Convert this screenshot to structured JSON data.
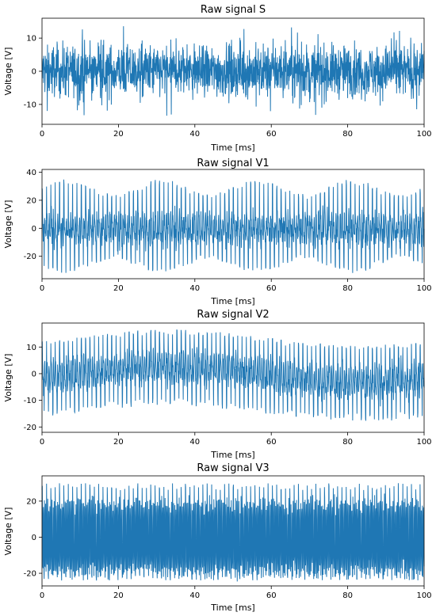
{
  "line_color": "#1f77b4",
  "chart_data": [
    {
      "type": "line",
      "title": "Raw signal S",
      "xlabel": "Time [ms]",
      "ylabel": "Voltage [V]",
      "xlim": [
        0,
        100
      ],
      "ylim": [
        -16,
        16
      ],
      "xticks": [
        0,
        20,
        40,
        60,
        80,
        100
      ],
      "yticks": [
        -10,
        0,
        10
      ],
      "grid": false,
      "signal": {
        "kind": "broadband_noise",
        "amplitude_typical": 7,
        "peak_max": 14,
        "peak_min": -14
      }
    },
    {
      "type": "line",
      "title": "Raw signal V1",
      "xlabel": "Time [ms]",
      "ylabel": "Voltage [V]",
      "xlim": [
        0,
        100
      ],
      "ylim": [
        -36,
        42
      ],
      "xticks": [
        0,
        20,
        40,
        60,
        80,
        100
      ],
      "yticks": [
        -20,
        0,
        20,
        40
      ],
      "grid": false,
      "signal": {
        "kind": "periodic_spikes",
        "cycles": 88,
        "peak_max": 35,
        "peak_min": -32,
        "baseline_amplitude": 15
      }
    },
    {
      "type": "line",
      "title": "Raw signal V2",
      "xlabel": "Time [ms]",
      "ylabel": "Voltage [V]",
      "xlim": [
        0,
        100
      ],
      "ylim": [
        -22,
        19
      ],
      "xticks": [
        0,
        20,
        40,
        60,
        80,
        100
      ],
      "yticks": [
        -20,
        -10,
        0,
        10
      ],
      "grid": false,
      "signal": {
        "kind": "periodic_spikes_drift",
        "cycles": 88,
        "peak_max": 17,
        "peak_min": -20,
        "baseline_amplitude": 7
      }
    },
    {
      "type": "line",
      "title": "Raw signal V3",
      "xlabel": "Time [ms]",
      "ylabel": "Voltage [V]",
      "xlim": [
        0,
        100
      ],
      "ylim": [
        -27,
        34
      ],
      "xticks": [
        0,
        20,
        40,
        60,
        80,
        100
      ],
      "yticks": [
        -20,
        0,
        20
      ],
      "grid": false,
      "signal": {
        "kind": "dense_carrier_with_spikes",
        "cycles": 88,
        "peak_max": 30,
        "peak_min": -24,
        "baseline_amplitude": 20
      }
    }
  ]
}
